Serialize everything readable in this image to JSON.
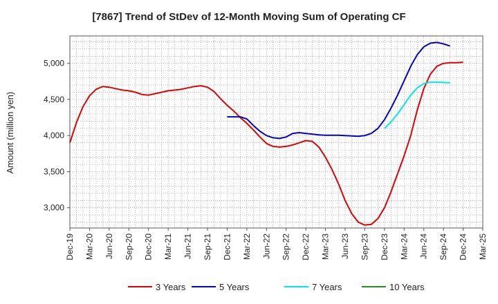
{
  "chart_data": {
    "type": "line",
    "title": "[7867]  Trend of StDev of 12-Month Moving Sum of Operating CF",
    "ylabel": "Amount (million yen)",
    "xlabel": "",
    "ylim": [
      2720,
      5380
    ],
    "yticks": [
      3000,
      3500,
      4000,
      4500,
      5000
    ],
    "ytick_labels": [
      "3,000",
      "3,500",
      "4,000",
      "4,500",
      "5,000"
    ],
    "xticks": [
      "Dec-19",
      "Mar-20",
      "Jun-20",
      "Sep-20",
      "Dec-20",
      "Mar-21",
      "Jun-21",
      "Sep-21",
      "Dec-21",
      "Mar-22",
      "Jun-22",
      "Sep-22",
      "Dec-22",
      "Mar-23",
      "Jun-23",
      "Sep-23",
      "Dec-23",
      "Mar-24",
      "Jun-24",
      "Sep-24",
      "Dec-24",
      "Mar-25"
    ],
    "x_range_months": [
      0,
      63
    ],
    "grid": true,
    "legend_position": "bottom",
    "series": [
      {
        "name": "3 Years",
        "color": "#e00000",
        "start_month": 0,
        "values": [
          3900,
          4180,
          4400,
          4550,
          4640,
          4680,
          4670,
          4650,
          4630,
          4620,
          4600,
          4570,
          4560,
          4580,
          4600,
          4620,
          4630,
          4640,
          4660,
          4680,
          4690,
          4670,
          4610,
          4510,
          4420,
          4340,
          4250,
          4170,
          4080,
          3980,
          3890,
          3850,
          3840,
          3850,
          3870,
          3900,
          3930,
          3920,
          3840,
          3700,
          3530,
          3330,
          3100,
          2920,
          2800,
          2760,
          2770,
          2850,
          3000,
          3220,
          3470,
          3720,
          4000,
          4350,
          4650,
          4850,
          4960,
          5000,
          5010,
          5010,
          5015
        ]
      },
      {
        "name": "5 Years",
        "color": "#0000cc",
        "start_month": 24,
        "values": [
          4260,
          4260,
          4260,
          4230,
          4140,
          4060,
          4000,
          3970,
          3960,
          3980,
          4030,
          4040,
          4030,
          4020,
          4010,
          4005,
          4005,
          4005,
          4000,
          3995,
          3990,
          4000,
          4030,
          4100,
          4220,
          4380,
          4560,
          4760,
          4960,
          5120,
          5230,
          5280,
          5290,
          5270,
          5240
        ]
      },
      {
        "name": "7 Years",
        "color": "#00e5ee",
        "start_month": 48,
        "values": [
          4100,
          4190,
          4300,
          4430,
          4560,
          4660,
          4720,
          4740,
          4740,
          4735,
          4730
        ]
      },
      {
        "name": "10 Years",
        "color": "#228b22",
        "start_month": 58,
        "values": []
      }
    ]
  }
}
